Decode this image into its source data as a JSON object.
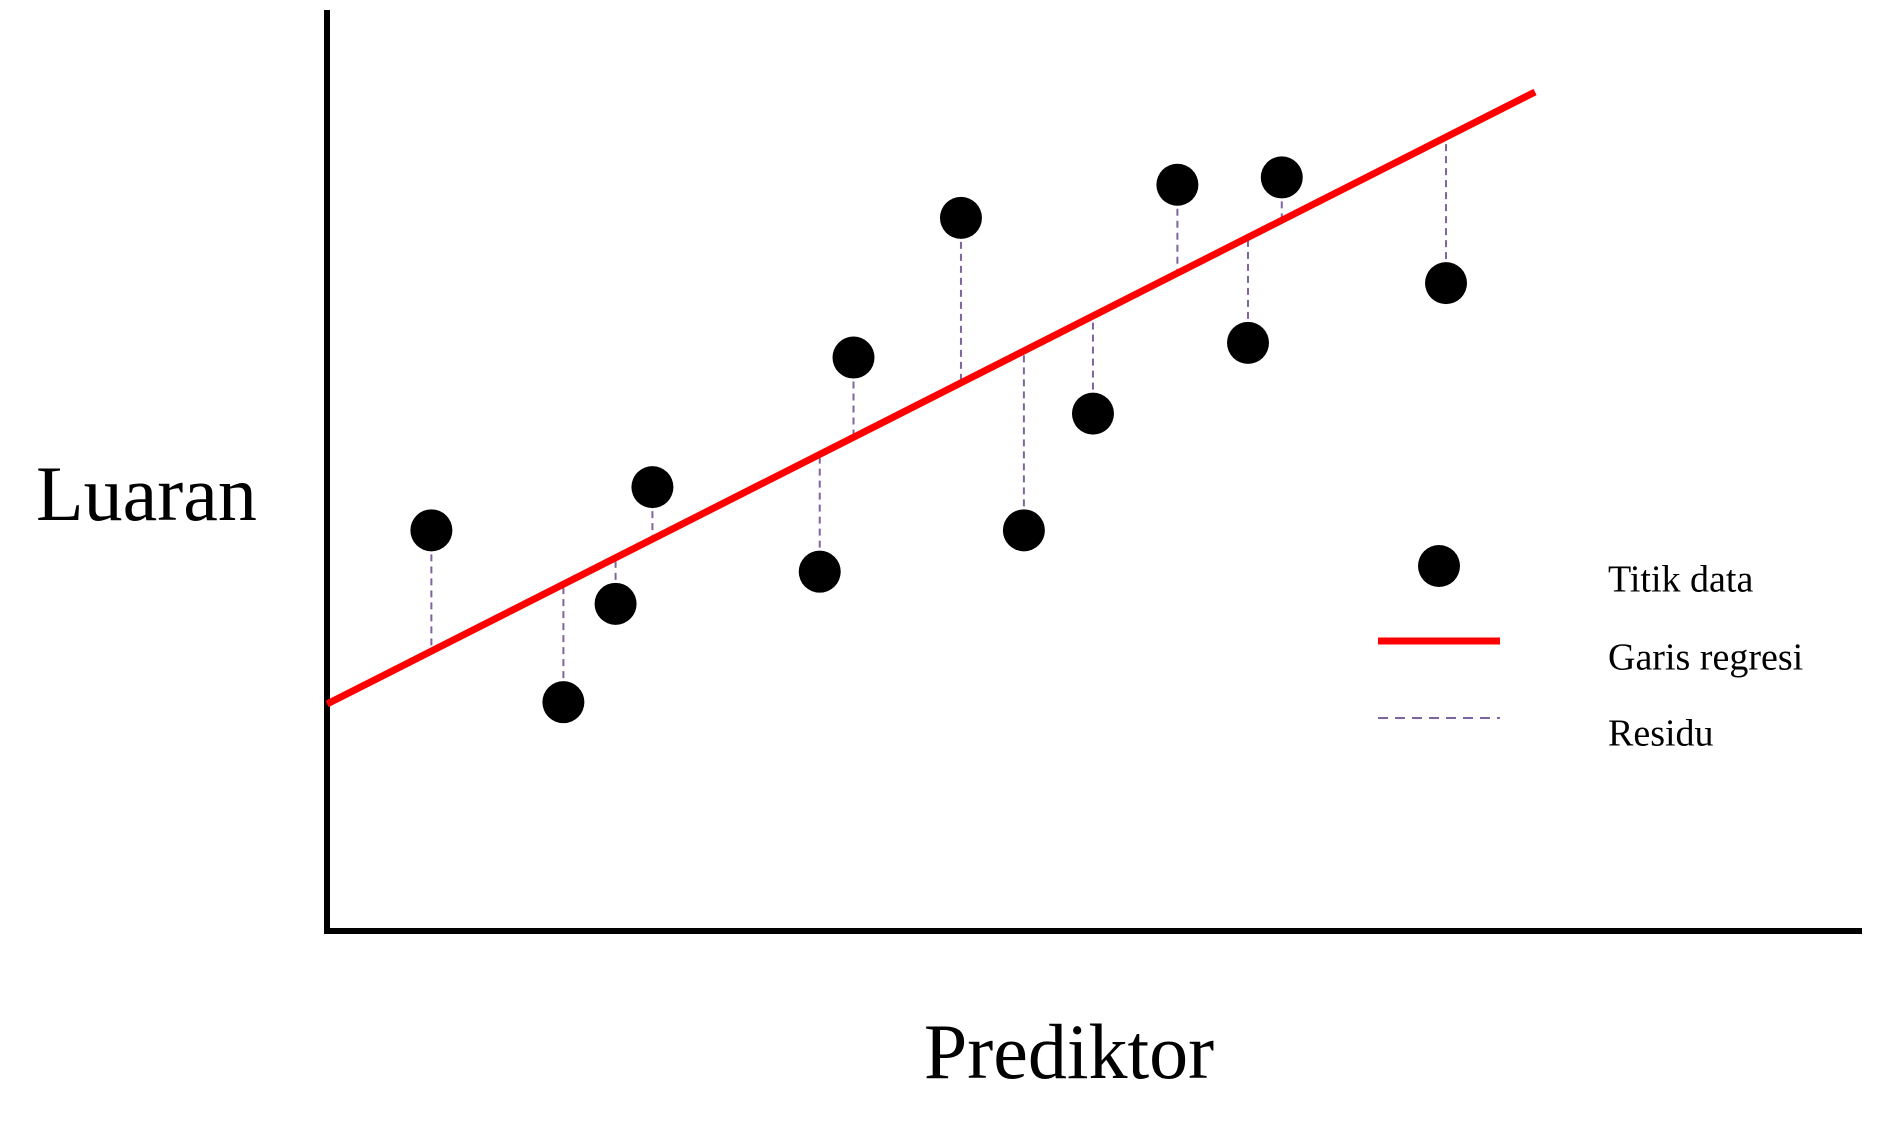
{
  "chart_data": {
    "type": "scatter",
    "x_label": "Prediktor",
    "y_label": "Luaran",
    "xlim": [
      0,
      100
    ],
    "ylim": [
      0,
      100
    ],
    "legend": "right",
    "points": {
      "name": "Titik data",
      "color": "#000000",
      "x": [
        6.8,
        15.4,
        18.8,
        21.2,
        32.1,
        34.3,
        41.3,
        45.4,
        49.9,
        55.4,
        60.0,
        62.2,
        72.9
      ],
      "values": [
        43.6,
        24.9,
        35.6,
        48.3,
        39.1,
        62.4,
        77.6,
        43.6,
        56.3,
        81.2,
        64.0,
        82.0,
        70.5
      ]
    },
    "regression": {
      "name": "Garis regresi",
      "color": "#ff0000",
      "x": [
        0,
        78.7
      ],
      "values": [
        24.7,
        91.3
      ]
    },
    "residuals": {
      "name": "Residu",
      "color": "#8064a2"
    }
  }
}
